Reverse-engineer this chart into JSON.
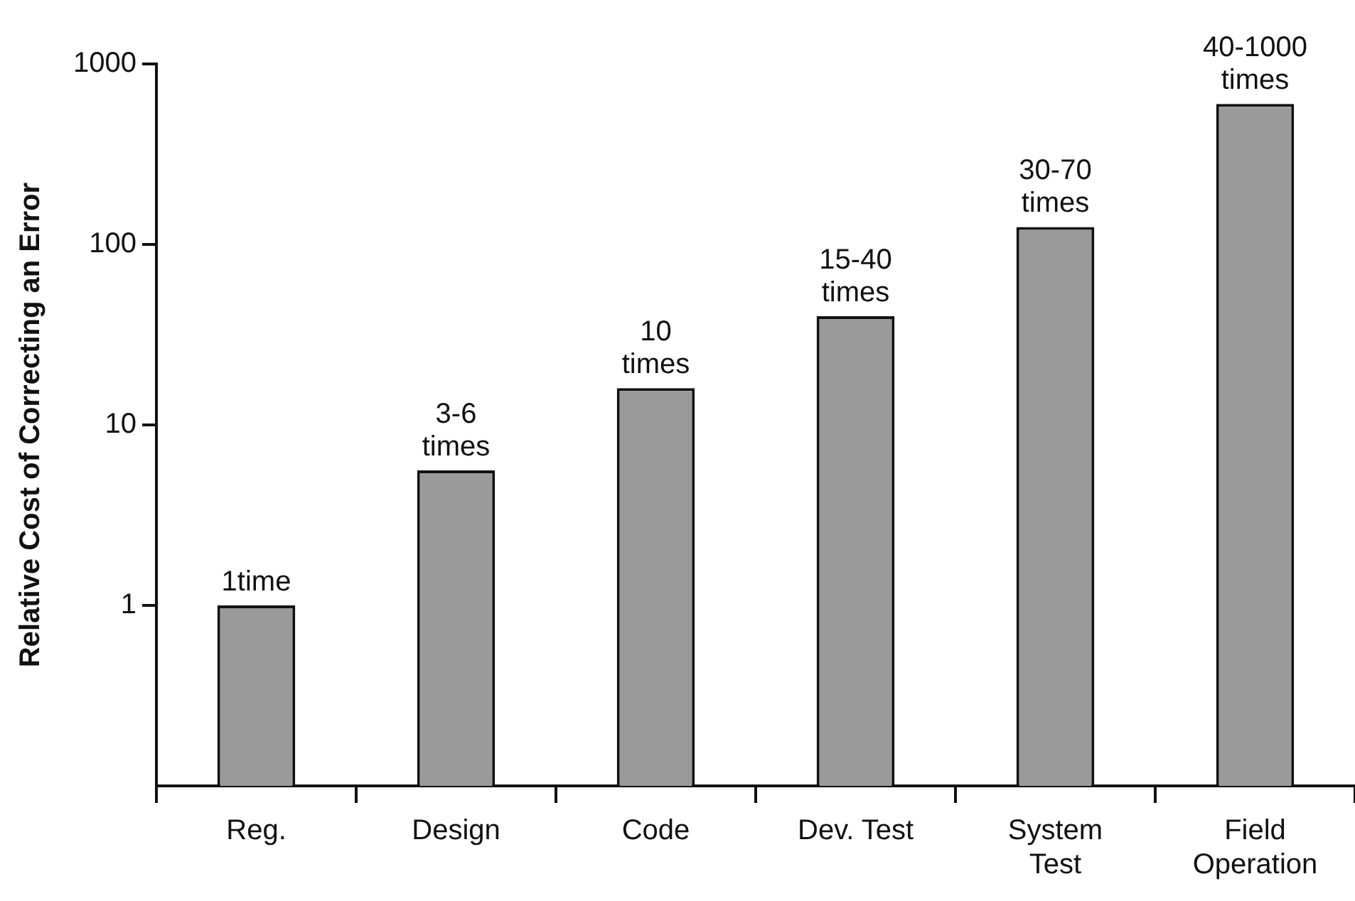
{
  "chart_data": {
    "type": "bar",
    "ylabel": "Relative Cost of Correcting an Error",
    "categories": [
      "Reg.",
      "Design",
      "Code",
      "Dev. Test",
      "System\nTest",
      "Field\nOperation"
    ],
    "values": [
      1,
      5.6,
      16,
      40,
      125,
      600
    ],
    "annotations": [
      {
        "text": "1time",
        "x": "Reg.",
        "y": 1
      },
      {
        "text": "3-6\ntimes",
        "x": "Design",
        "y": 5.6
      },
      {
        "text": "10\ntimes",
        "x": "Code",
        "y": 16
      },
      {
        "text": "15-40\ntimes",
        "x": "Dev. Test",
        "y": 40
      },
      {
        "text": "30-70\ntimes",
        "x": "System\nTest",
        "y": 125
      },
      {
        "text": "40-1000\ntimes",
        "x": "Field\nOperation",
        "y": 600
      }
    ],
    "color": "#9a9a9a",
    "log": "y",
    "ylim": [
      0.1,
      1000
    ],
    "yticks": [
      1,
      10,
      100,
      1000
    ],
    "grid": false,
    "legend": false
  }
}
